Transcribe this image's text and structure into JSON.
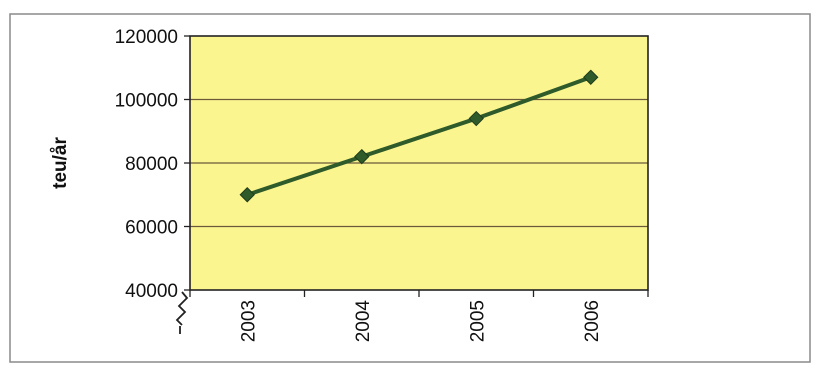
{
  "chart_data": {
    "type": "line",
    "title": "",
    "xlabel": "",
    "ylabel": "teu/år",
    "categories": [
      "2003",
      "2004",
      "2005",
      "2006"
    ],
    "series": [
      {
        "values": [
          70000,
          82000,
          94000,
          107000
        ]
      }
    ],
    "ylim": [
      40000,
      120000
    ],
    "yticks": [
      "40000",
      "60000",
      "80000",
      "100000",
      "120000"
    ],
    "y_axis_break": true,
    "grid": "horizontal",
    "legend": "none",
    "colors": {
      "plot_background": "#fbf58f",
      "line": "#2f5a2a",
      "marker": "#2f5a2a",
      "gridline": "#6b5a3a",
      "axis": "#222222",
      "frame": "#7a7a7a"
    }
  }
}
